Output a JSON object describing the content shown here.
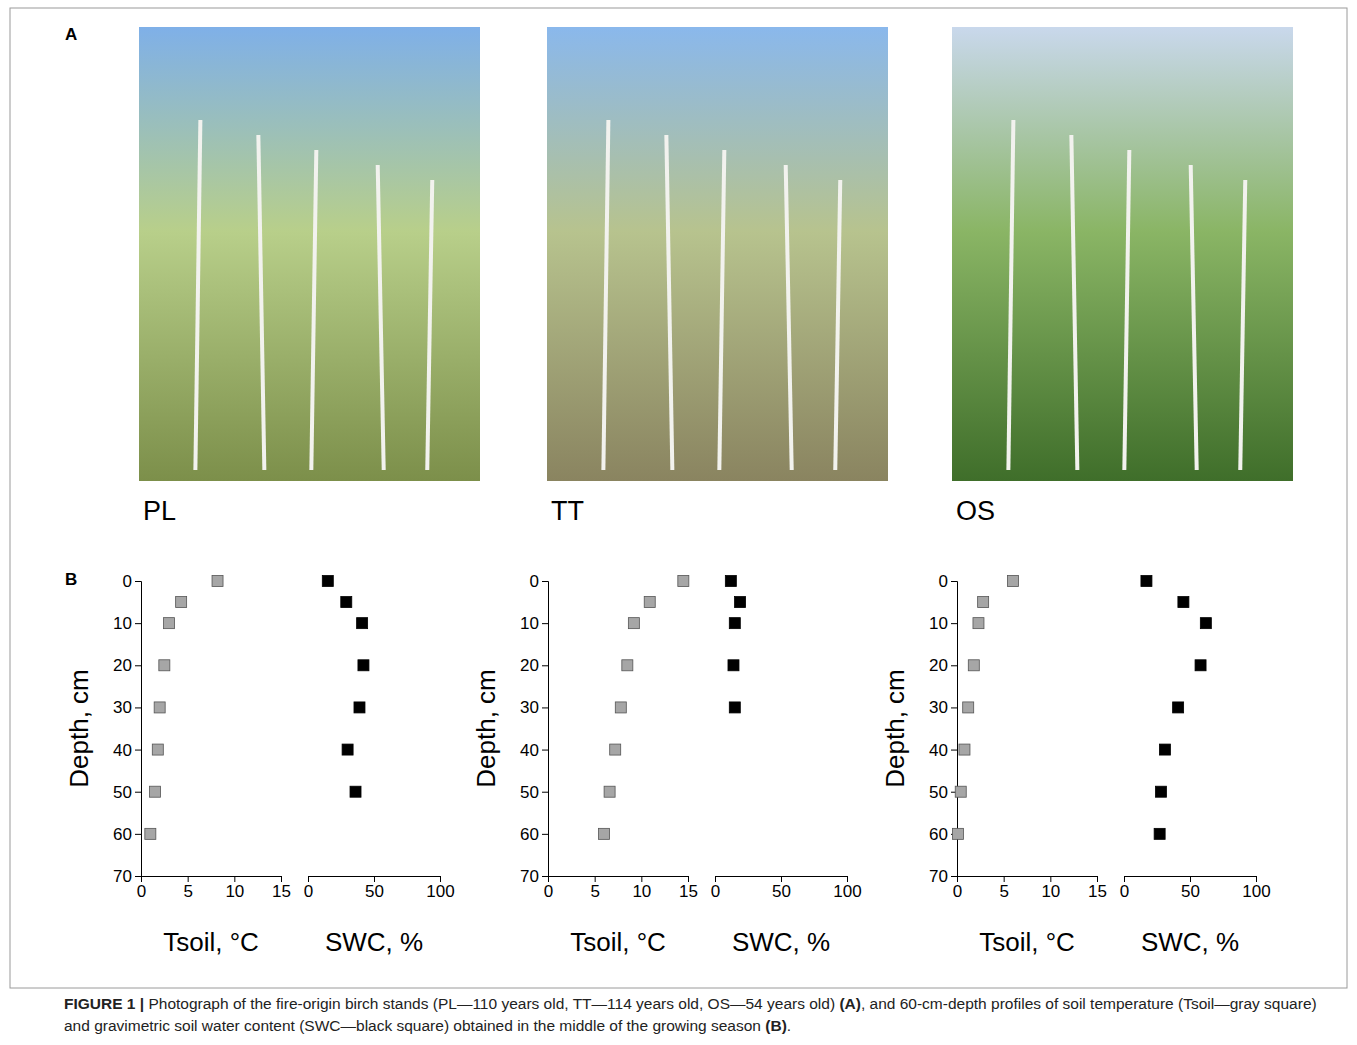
{
  "figure": {
    "panel_labels": [
      "A",
      "B"
    ],
    "photo_labels": [
      "PL",
      "TT",
      "OS"
    ],
    "caption": [
      {
        "text": "FIGURE 1 | ",
        "bold": true
      },
      {
        "text": "Photograph of the fire-origin birch stands (PL—110 years old, TT—114 years old, OS—54 years old) ",
        "bold": false
      },
      {
        "text": "(A)",
        "bold": true
      },
      {
        "text": ", and 60-cm-depth profiles of soil temperature (Tsoil—gray square) and gravimetric soil water content (SWC—black square) obtained in the middle of the growing season ",
        "bold": false
      },
      {
        "text": "(B)",
        "bold": true
      },
      {
        "text": ".",
        "bold": false
      }
    ]
  },
  "chart_data": [
    {
      "type": "scatter",
      "x_label": "Tsoil, °C",
      "y_label": "Depth, cm",
      "x": [
        8.2,
        4.3,
        3.0,
        2.5,
        2.0,
        1.8,
        1.5,
        1.0
      ],
      "values": [
        0,
        5,
        10,
        20,
        30,
        40,
        50,
        60
      ],
      "xlim": [
        0,
        15
      ],
      "xticks": [
        0,
        5,
        10,
        15
      ],
      "ylim": [
        0,
        70
      ],
      "yticks": [
        0,
        10,
        20,
        30,
        40,
        50,
        60,
        70
      ],
      "color": "#a6a6a6",
      "marker": "square"
    },
    {
      "type": "scatter",
      "x_label": "SWC, %",
      "x": [
        15,
        29,
        41,
        42,
        39,
        30,
        36
      ],
      "values": [
        0,
        5,
        10,
        20,
        30,
        40,
        50
      ],
      "xlim": [
        0,
        100
      ],
      "xticks": [
        0,
        50,
        100
      ],
      "ylim": [
        0,
        70
      ],
      "color": "#000000",
      "marker": "square",
      "tick_labels": "x"
    },
    {
      "type": "scatter",
      "x_label": "Tsoil, °C",
      "y_label": "Depth, cm",
      "x": [
        14.5,
        10.9,
        9.2,
        8.5,
        7.8,
        7.2,
        6.6,
        6.0
      ],
      "values": [
        0,
        5,
        10,
        20,
        30,
        40,
        50,
        60
      ],
      "xlim": [
        0,
        15
      ],
      "xticks": [
        0,
        5,
        10,
        15
      ],
      "ylim": [
        0,
        70
      ],
      "yticks": [
        0,
        10,
        20,
        30,
        40,
        50,
        60,
        70
      ],
      "color": "#a6a6a6",
      "marker": "square"
    },
    {
      "type": "scatter",
      "x_label": "SWC, %",
      "x": [
        12,
        19,
        15,
        14,
        15
      ],
      "values": [
        0,
        5,
        10,
        20,
        30
      ],
      "xlim": [
        0,
        100
      ],
      "xticks": [
        0,
        50,
        100
      ],
      "ylim": [
        0,
        70
      ],
      "color": "#000000",
      "marker": "square",
      "tick_labels": "x"
    },
    {
      "type": "scatter",
      "x_label": "Tsoil, °C",
      "y_label": "Depth, cm",
      "x": [
        6.0,
        2.8,
        2.3,
        1.8,
        1.2,
        0.8,
        0.4,
        0.1
      ],
      "values": [
        0,
        5,
        10,
        20,
        30,
        40,
        50,
        60
      ],
      "xlim": [
        0,
        15
      ],
      "xticks": [
        0,
        5,
        10,
        15
      ],
      "ylim": [
        0,
        70
      ],
      "yticks": [
        0,
        10,
        20,
        30,
        40,
        50,
        60,
        70
      ],
      "color": "#a6a6a6",
      "marker": "square"
    },
    {
      "type": "scatter",
      "x_label": "SWC, %",
      "x": [
        17,
        45,
        62,
        58,
        41,
        31,
        28,
        27
      ],
      "values": [
        0,
        5,
        10,
        20,
        30,
        40,
        50,
        60
      ],
      "xlim": [
        0,
        100
      ],
      "xticks": [
        0,
        50,
        100
      ],
      "ylim": [
        0,
        70
      ],
      "color": "#000000",
      "marker": "square",
      "tick_labels": "x"
    }
  ]
}
